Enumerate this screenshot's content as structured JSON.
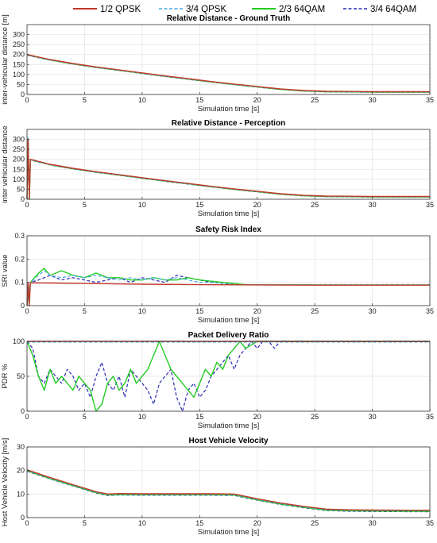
{
  "legend": {
    "placement": "top",
    "entries": [
      {
        "label": "1/2 QPSK",
        "color": "#c0392b",
        "dash": "solid"
      },
      {
        "label": "3/4 QPSK",
        "color": "#4aa8e0",
        "dash": "dashed"
      },
      {
        "label": "2/3 64QAM",
        "color": "#22cc22",
        "dash": "solid"
      },
      {
        "label": "3/4 64QAM",
        "color": "#2b2bb5",
        "dash": "dashed"
      }
    ]
  },
  "chart_data": [
    {
      "type": "line",
      "title": "Relative Distance - Ground Truth",
      "xlabel": "Simulation time [s]",
      "ylabel": "inter-vehicular distance [m]",
      "xlim": [
        0,
        35
      ],
      "ylim": [
        0,
        350
      ],
      "xticks": [
        0,
        5,
        10,
        15,
        20,
        25,
        30,
        35
      ],
      "yticks": [
        0,
        50,
        100,
        150,
        200,
        250,
        300
      ],
      "grid": true,
      "series": [
        {
          "name": "1/2 QPSK",
          "x": [
            0,
            2,
            4,
            6,
            8,
            10,
            12,
            14,
            16,
            18,
            20,
            22,
            24,
            26,
            28,
            30,
            35
          ],
          "y": [
            200,
            175,
            155,
            138,
            123,
            108,
            93,
            79,
            65,
            52,
            40,
            28,
            20,
            16,
            15,
            14,
            14
          ]
        },
        {
          "name": "3/4 QPSK",
          "x": [
            0,
            2,
            4,
            6,
            8,
            10,
            12,
            14,
            16,
            18,
            20,
            22,
            24,
            26,
            28,
            30,
            35
          ],
          "y": [
            199,
            174,
            154,
            137,
            122,
            107,
            92,
            78,
            64,
            51,
            39,
            27,
            19,
            15,
            14,
            13,
            13
          ]
        },
        {
          "name": "2/3 64QAM",
          "x": [
            0,
            2,
            4,
            6,
            8,
            10,
            12,
            14,
            16,
            18,
            20,
            22,
            24,
            26,
            28,
            30,
            35
          ],
          "y": [
            198,
            173,
            153,
            136,
            121,
            106,
            91,
            77,
            63,
            50,
            38,
            26,
            18,
            14,
            13,
            12,
            12
          ]
        },
        {
          "name": "3/4 64QAM",
          "x": [
            0,
            2,
            4,
            6,
            8,
            10,
            12,
            14,
            16,
            18,
            20,
            22,
            24,
            26,
            28,
            30,
            35
          ],
          "y": [
            197,
            172,
            152,
            135,
            120,
            105,
            90,
            76,
            62,
            49,
            37,
            25,
            17,
            13,
            12,
            11,
            11
          ]
        }
      ]
    },
    {
      "type": "line",
      "title": "Relative Distance - Perception",
      "xlabel": "Simulation time [s]",
      "ylabel": "inter vehicular distance",
      "xlim": [
        0,
        35
      ],
      "ylim": [
        0,
        350
      ],
      "xticks": [
        0,
        5,
        10,
        15,
        20,
        25,
        30,
        35
      ],
      "yticks": [
        0,
        50,
        100,
        150,
        200,
        250,
        300
      ],
      "grid": true,
      "series": [
        {
          "name": "1/2 QPSK",
          "x": [
            0,
            0.1,
            0.2,
            0.3,
            2,
            4,
            6,
            8,
            10,
            12,
            14,
            16,
            18,
            20,
            22,
            24,
            26,
            28,
            30,
            35
          ],
          "y": [
            0,
            300,
            0,
            200,
            175,
            155,
            138,
            123,
            108,
            93,
            79,
            65,
            52,
            40,
            28,
            20,
            16,
            15,
            14,
            14
          ]
        },
        {
          "name": "3/4 QPSK",
          "x": [
            0,
            0.1,
            0.2,
            0.3,
            2,
            4,
            6,
            8,
            10,
            12,
            14,
            16,
            18,
            20,
            22,
            24,
            26,
            28,
            30,
            35
          ],
          "y": [
            0,
            310,
            0,
            199,
            174,
            154,
            137,
            122,
            107,
            92,
            78,
            64,
            51,
            39,
            27,
            19,
            15,
            14,
            13,
            13
          ]
        },
        {
          "name": "2/3 64QAM",
          "x": [
            0,
            0.1,
            0.2,
            0.3,
            2,
            4,
            6,
            8,
            10,
            12,
            14,
            16,
            18,
            20,
            22,
            24,
            26,
            28,
            30,
            35
          ],
          "y": [
            0,
            305,
            0,
            198,
            173,
            153,
            136,
            121,
            106,
            91,
            77,
            63,
            50,
            38,
            26,
            18,
            14,
            13,
            12,
            12
          ]
        },
        {
          "name": "3/4 64QAM",
          "x": [
            0,
            0.1,
            0.2,
            0.3,
            2,
            4,
            6,
            8,
            10,
            12,
            14,
            16,
            18,
            20,
            22,
            24,
            26,
            28,
            30,
            35
          ],
          "y": [
            0,
            295,
            0,
            197,
            172,
            152,
            135,
            120,
            105,
            90,
            76,
            62,
            49,
            37,
            25,
            17,
            13,
            12,
            11,
            11
          ]
        }
      ]
    },
    {
      "type": "line",
      "title": "Safety Risk Index",
      "xlabel": "Simulation time [s]",
      "ylabel": "SRI value",
      "xlim": [
        0,
        35
      ],
      "ylim": [
        0,
        0.3
      ],
      "xticks": [
        0,
        5,
        10,
        15,
        20,
        25,
        30,
        35
      ],
      "yticks": [
        0,
        0.1,
        0.2,
        0.3
      ],
      "grid": true,
      "series": [
        {
          "name": "1/2 QPSK",
          "x": [
            0,
            0.1,
            0.2,
            0.3,
            2,
            5,
            10,
            15,
            20,
            25,
            30,
            35
          ],
          "y": [
            0,
            0.1,
            0,
            0.098,
            0.097,
            0.095,
            0.092,
            0.09,
            0.089,
            0.088,
            0.088,
            0.088
          ]
        },
        {
          "name": "3/4 QPSK",
          "x": [
            0,
            0.3,
            1,
            1.5,
            2,
            3,
            4,
            5,
            6,
            7,
            8,
            9,
            10,
            11,
            12,
            13,
            14,
            15,
            16,
            17,
            18,
            19,
            20,
            25,
            30,
            35
          ],
          "y": [
            0,
            0.1,
            0.13,
            0.15,
            0.13,
            0.12,
            0.13,
            0.12,
            0.13,
            0.12,
            0.11,
            0.12,
            0.11,
            0.12,
            0.11,
            0.12,
            0.11,
            0.1,
            0.1,
            0.095,
            0.09,
            0.09,
            0.09,
            0.089,
            0.089,
            0.089
          ]
        },
        {
          "name": "2/3 64QAM",
          "x": [
            0,
            0.3,
            1,
            1.5,
            2,
            3,
            4,
            5,
            6,
            7,
            8,
            9,
            10,
            11,
            12,
            13,
            14,
            15,
            16,
            17,
            18,
            19,
            20,
            25,
            30,
            35
          ],
          "y": [
            0,
            0.1,
            0.14,
            0.16,
            0.13,
            0.15,
            0.13,
            0.12,
            0.14,
            0.12,
            0.12,
            0.11,
            0.11,
            0.12,
            0.11,
            0.11,
            0.12,
            0.11,
            0.105,
            0.1,
            0.095,
            0.09,
            0.09,
            0.089,
            0.089,
            0.089
          ]
        },
        {
          "name": "3/4 64QAM",
          "x": [
            0,
            0.3,
            1,
            1.5,
            2,
            3,
            4,
            5,
            6,
            7,
            8,
            9,
            10,
            11,
            12,
            13,
            14,
            15,
            16,
            17,
            18,
            19,
            20,
            25,
            30,
            35
          ],
          "y": [
            0,
            0.1,
            0.11,
            0.12,
            0.13,
            0.11,
            0.12,
            0.11,
            0.1,
            0.11,
            0.12,
            0.1,
            0.12,
            0.11,
            0.1,
            0.13,
            0.12,
            0.11,
            0.1,
            0.1,
            0.09,
            0.09,
            0.09,
            0.089,
            0.089,
            0.089
          ]
        }
      ]
    },
    {
      "type": "line",
      "title": "Packet Delivery Ratio",
      "xlabel": "Simulation time [s]",
      "ylabel": "PDR %",
      "xlim": [
        0,
        35
      ],
      "ylim": [
        0,
        100
      ],
      "xticks": [
        0,
        5,
        10,
        15,
        20,
        25,
        30,
        35
      ],
      "yticks": [
        0,
        50,
        100
      ],
      "grid": true,
      "series": [
        {
          "name": "1/2 QPSK",
          "x": [
            0,
            35
          ],
          "y": [
            100,
            100
          ]
        },
        {
          "name": "3/4 QPSK",
          "x": [
            0,
            35
          ],
          "y": [
            99,
            99
          ]
        },
        {
          "name": "2/3 64QAM",
          "x": [
            0,
            0.5,
            1,
            1.5,
            2,
            2.5,
            3,
            3.5,
            4,
            4.5,
            5,
            5.5,
            6,
            6.5,
            7,
            7.5,
            8,
            8.5,
            9,
            9.5,
            10,
            10.5,
            11,
            11.5,
            12,
            12.5,
            13,
            13.5,
            14,
            14.5,
            15,
            15.5,
            16,
            16.5,
            17,
            17.5,
            18,
            18.5,
            19,
            20,
            35
          ],
          "y": [
            100,
            80,
            50,
            30,
            60,
            40,
            50,
            40,
            30,
            50,
            40,
            30,
            0,
            10,
            40,
            50,
            30,
            40,
            60,
            40,
            50,
            60,
            80,
            100,
            80,
            60,
            50,
            40,
            30,
            20,
            40,
            60,
            50,
            70,
            60,
            80,
            90,
            100,
            90,
            100,
            100
          ]
        },
        {
          "name": "3/4 64QAM",
          "x": [
            0,
            0.5,
            1,
            1.5,
            2,
            2.5,
            3,
            3.5,
            4,
            4.5,
            5,
            5.5,
            6,
            6.5,
            7,
            7.5,
            8,
            8.5,
            9,
            9.5,
            10,
            10.5,
            11,
            11.5,
            12,
            12.5,
            13,
            13.5,
            14,
            14.5,
            15,
            15.5,
            16,
            16.5,
            17,
            17.5,
            18,
            18.5,
            19,
            19.5,
            20,
            20.5,
            21,
            21.5,
            22,
            35
          ],
          "y": [
            100,
            90,
            50,
            40,
            60,
            50,
            40,
            60,
            50,
            30,
            40,
            20,
            50,
            70,
            40,
            30,
            50,
            20,
            60,
            50,
            40,
            30,
            10,
            40,
            50,
            60,
            20,
            0,
            30,
            40,
            20,
            30,
            50,
            60,
            70,
            80,
            60,
            80,
            90,
            100,
            90,
            100,
            100,
            90,
            100,
            100
          ]
        }
      ]
    },
    {
      "type": "line",
      "title": "Host Vehicle Velocity",
      "xlabel": "Simulation time [s]",
      "ylabel": "Host Vehicle Velocity [m/s]",
      "xlim": [
        0,
        35
      ],
      "ylim": [
        0,
        30
      ],
      "xticks": [
        0,
        5,
        10,
        15,
        20,
        25,
        30,
        35
      ],
      "yticks": [
        0,
        10,
        20,
        30
      ],
      "grid": true,
      "series": [
        {
          "name": "1/2 QPSK",
          "x": [
            0,
            2,
            4,
            6,
            7,
            8,
            10,
            12,
            14,
            16,
            18,
            20,
            22,
            24,
            26,
            28,
            30,
            35
          ],
          "y": [
            20.3,
            17,
            14,
            11,
            10,
            10.2,
            10.1,
            10.1,
            10.1,
            10.1,
            10,
            8,
            6.2,
            4.8,
            3.6,
            3.3,
            3.2,
            3.1
          ]
        },
        {
          "name": "3/4 QPSK",
          "x": [
            0,
            2,
            4,
            6,
            7,
            8,
            10,
            12,
            14,
            16,
            18,
            20,
            22,
            24,
            26,
            28,
            30,
            35
          ],
          "y": [
            20.1,
            16.8,
            13.8,
            10.8,
            9.8,
            10,
            9.9,
            9.9,
            9.9,
            9.9,
            9.8,
            7.8,
            6,
            4.6,
            3.4,
            3.1,
            3,
            2.9
          ]
        },
        {
          "name": "2/3 64QAM",
          "x": [
            0,
            2,
            4,
            6,
            7,
            8,
            10,
            12,
            14,
            16,
            18,
            20,
            22,
            24,
            26,
            28,
            30,
            35
          ],
          "y": [
            19.9,
            16.6,
            13.6,
            10.6,
            9.6,
            9.8,
            9.7,
            9.7,
            9.7,
            9.7,
            9.6,
            7.6,
            5.8,
            4.4,
            3.2,
            2.9,
            2.8,
            2.7
          ]
        },
        {
          "name": "3/4 64QAM",
          "x": [
            0,
            2,
            4,
            6,
            7,
            8,
            10,
            12,
            14,
            16,
            18,
            20,
            22,
            24,
            26,
            28,
            30,
            35
          ],
          "y": [
            19.7,
            16.4,
            13.4,
            10.4,
            9.4,
            9.6,
            9.5,
            9.5,
            9.5,
            9.5,
            9.4,
            7.4,
            5.6,
            4.2,
            3,
            2.7,
            2.6,
            2.5
          ]
        }
      ]
    }
  ]
}
